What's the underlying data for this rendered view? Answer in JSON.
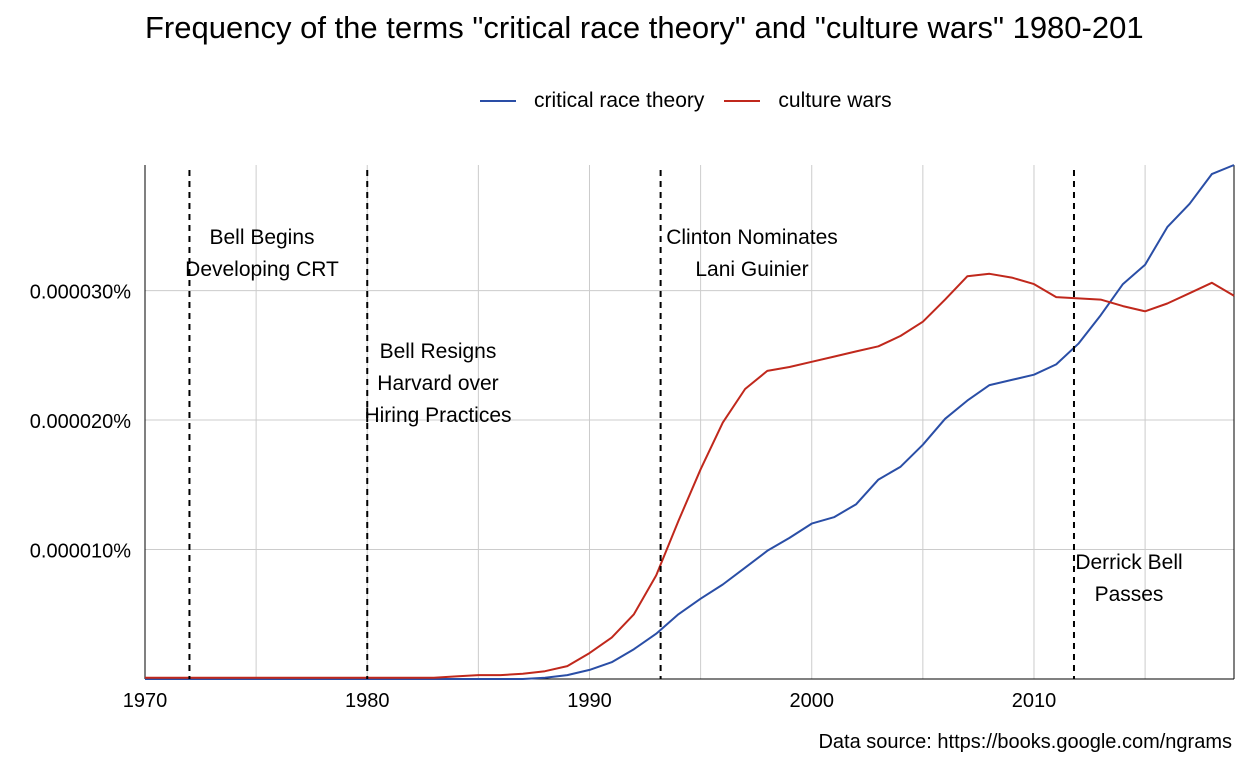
{
  "chart_data": {
    "type": "line",
    "title": "Frequency of the terms \"critical race theory\" and \"culture wars\" 1980-201",
    "xlabel": "",
    "ylabel": "",
    "xlim": [
      1970,
      2019
    ],
    "ylim": [
      0,
      3.97e-05
    ],
    "x_ticks": [
      1970,
      1980,
      1990,
      2000,
      2010
    ],
    "x_tick_labels": [
      "1970",
      "1980",
      "1990",
      "2000",
      "2010"
    ],
    "y_ticks": [
      1e-05,
      2e-05,
      3e-05
    ],
    "y_tick_labels": [
      "0.000010%",
      "0.000020%",
      "0.000030%"
    ],
    "grid": true,
    "legend_position": "top",
    "x": [
      1970,
      1971,
      1972,
      1973,
      1974,
      1975,
      1976,
      1977,
      1978,
      1979,
      1980,
      1981,
      1982,
      1983,
      1984,
      1985,
      1986,
      1987,
      1988,
      1989,
      1990,
      1991,
      1992,
      1993,
      1994,
      1995,
      1996,
      1997,
      1998,
      1999,
      2000,
      2001,
      2002,
      2003,
      2004,
      2005,
      2006,
      2007,
      2008,
      2009,
      2010,
      2011,
      2012,
      2013,
      2014,
      2015,
      2016,
      2017,
      2018,
      2019
    ],
    "series": [
      {
        "name": "critical race theory",
        "color": "#2a4ea6",
        "values": [
          0,
          0,
          0,
          0,
          0,
          0,
          0,
          0,
          0,
          0,
          0,
          0,
          0,
          0,
          0,
          0,
          0,
          0,
          1e-07,
          3e-07,
          7e-07,
          1.3e-06,
          2.3e-06,
          3.5e-06,
          5e-06,
          6.2e-06,
          7.3e-06,
          8.6e-06,
          9.9e-06,
          1.09e-05,
          1.2e-05,
          1.25e-05,
          1.35e-05,
          1.54e-05,
          1.64e-05,
          1.81e-05,
          2.01e-05,
          2.15e-05,
          2.27e-05,
          2.31e-05,
          2.35e-05,
          2.43e-05,
          2.59e-05,
          2.81e-05,
          3.05e-05,
          3.2e-05,
          3.49e-05,
          3.67e-05,
          3.9e-05,
          3.97e-05
        ]
      },
      {
        "name": "culture wars",
        "color": "#c0281c",
        "values": [
          1e-07,
          1e-07,
          1e-07,
          1e-07,
          1e-07,
          1e-07,
          1e-07,
          1e-07,
          1e-07,
          1e-07,
          1e-07,
          1e-07,
          1e-07,
          1e-07,
          2e-07,
          3e-07,
          3e-07,
          4e-07,
          6e-07,
          1e-06,
          2e-06,
          3.2e-06,
          5e-06,
          8e-06,
          1.22e-05,
          1.62e-05,
          1.98e-05,
          2.24e-05,
          2.38e-05,
          2.41e-05,
          2.45e-05,
          2.49e-05,
          2.53e-05,
          2.57e-05,
          2.65e-05,
          2.76e-05,
          2.93e-05,
          3.11e-05,
          3.13e-05,
          3.1e-05,
          3.05e-05,
          2.95e-05,
          2.94e-05,
          2.93e-05,
          2.88e-05,
          2.84e-05,
          2.9e-05,
          2.98e-05,
          3.06e-05,
          2.96e-05
        ]
      }
    ],
    "events": [
      {
        "year": 1972,
        "label": [
          "Bell Begins",
          "Developing CRT"
        ]
      },
      {
        "year": 1980,
        "label": [
          "Bell Resigns",
          "Harvard over",
          "Hiring Practices"
        ]
      },
      {
        "year": 1993.2,
        "label": [
          "Clinton Nominates",
          "Lani Guinier"
        ]
      },
      {
        "year": 2011.8,
        "label": [
          "Derrick Bell",
          "Passes"
        ]
      }
    ],
    "source_note": "Data source: https://books.google.com/ngrams",
    "colors": {
      "grid": "#cccccc",
      "axis": "#000000",
      "event_line": "#000000"
    }
  }
}
